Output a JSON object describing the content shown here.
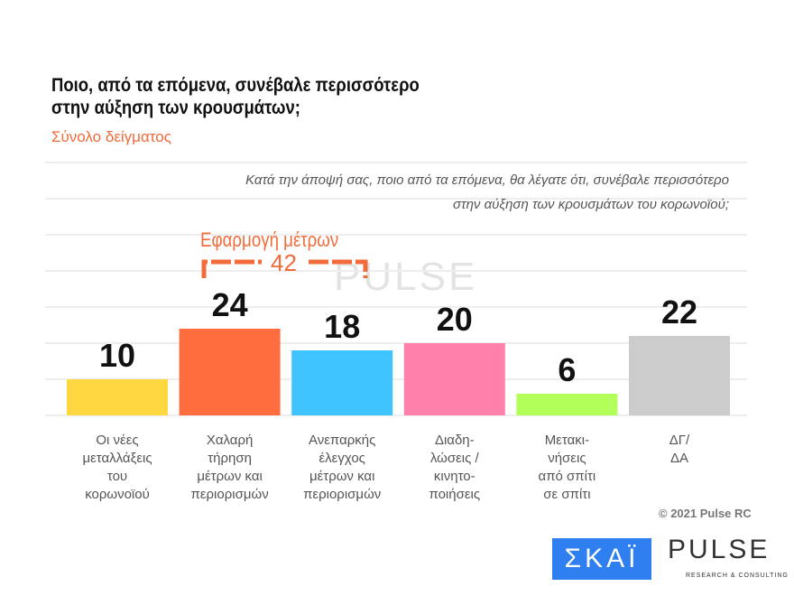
{
  "header": {
    "title_line1": "Ποιο, από τα επόμενα, συνέβαλε περισσότερο",
    "title_line2": "στην αύξηση των κρουσμάτων;",
    "subtitle": "Σύνολο δείγματος",
    "question_line1": "Κατά την άποψή σας, ποιο από τα επόμενα, θα λέγατε ότι, συνέβαλε περισσότερο",
    "question_line2": "στην αύξηση των κρουσμάτων του κορωνοϊού;"
  },
  "chart_data": {
    "type": "bar",
    "categories": [
      "Οι νέες μεταλλάξεις του κορωνοϊού",
      "Χαλαρή τήρηση μέτρων και περιορισμών",
      "Ανεπαρκής έλεγχος μέτρων και περιορισμών",
      "Διαδηλώσεις / κινητοποιήσεις",
      "Μετακινήσεις από σπίτι σε σπίτι",
      "ΔΓ/ΔΑ"
    ],
    "category_lines": [
      [
        "Οι νέες",
        "μεταλλάξεις",
        "του",
        "κορωνοϊού"
      ],
      [
        "Χαλαρή",
        "τήρηση",
        "μέτρων και",
        "περιορισμών"
      ],
      [
        "Ανεπαρκής",
        "έλεγχος",
        "μέτρων και",
        "περιορισμών"
      ],
      [
        "Διαδη-",
        "λώσεις /",
        "κινητο-",
        "ποιήσεις"
      ],
      [
        "Μετακι-",
        "νήσεις",
        "από σπίτι",
        "σε σπίτι"
      ],
      [
        "ΔΓ/",
        "ΔΑ"
      ]
    ],
    "values": [
      10,
      24,
      18,
      20,
      6,
      22
    ],
    "colors": [
      "#ffd740",
      "#ff6d3f",
      "#40c4ff",
      "#ff80ab",
      "#b2ff59",
      "#cccccc"
    ],
    "ylim": [
      0,
      70
    ],
    "grid": true,
    "annotation": {
      "label": "Εφαρμογή μέτρων",
      "value": "42"
    }
  },
  "footer": {
    "copyright": "© 2021 Pulse RC",
    "logo_skai": "ΣΚΑΪ",
    "logo_pulse": "PULSE",
    "logo_pulse_sub": "RESEARCH & CONSULTING"
  }
}
